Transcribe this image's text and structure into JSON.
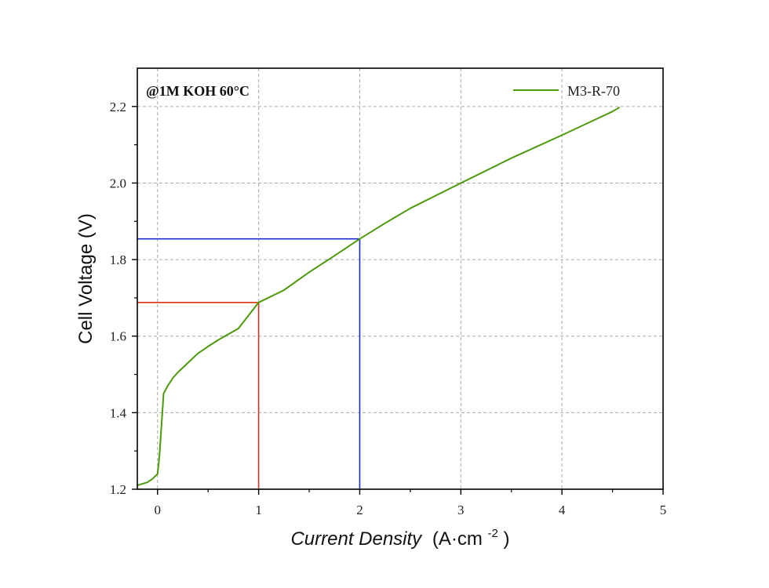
{
  "chart_data": {
    "type": "line",
    "annotation": "@1M KOH 60°C",
    "xlabel": {
      "italic": "Current Density",
      "unit_prefix": "(A·cm",
      "unit_exp": "-2",
      "unit_suffix": ")"
    },
    "ylabel": "Cell Voltage (V)",
    "xlim": [
      -0.2,
      5
    ],
    "ylim": [
      1.2,
      2.3
    ],
    "xticks": [
      0,
      1,
      2,
      3,
      4,
      5
    ],
    "xtick_labels": [
      "0",
      "1",
      "2",
      "3",
      "4",
      "5"
    ],
    "yticks": [
      1.2,
      1.4,
      1.6,
      1.8,
      2.0,
      2.2
    ],
    "ytick_labels": [
      "1.2",
      "1.4",
      "1.6",
      "1.8",
      "2.0",
      "2.2"
    ],
    "grid": true,
    "legend_position": "top-right",
    "series": [
      {
        "name": "M3-R-70",
        "color": "#4a9a0a",
        "x": [
          -0.2,
          -0.1,
          -0.05,
          0.0,
          0.02,
          0.04,
          0.06,
          0.1,
          0.15,
          0.2,
          0.3,
          0.4,
          0.5,
          0.6,
          0.8,
          1.0,
          1.25,
          1.5,
          1.75,
          2.0,
          2.25,
          2.5,
          3.0,
          3.5,
          4.0,
          4.5,
          4.57
        ],
        "y": [
          1.21,
          1.218,
          1.227,
          1.24,
          1.29,
          1.37,
          1.45,
          1.47,
          1.49,
          1.505,
          1.53,
          1.555,
          1.573,
          1.59,
          1.62,
          1.688,
          1.72,
          1.767,
          1.81,
          1.854,
          1.895,
          1.934,
          2.0,
          2.065,
          2.125,
          2.187,
          2.198
        ]
      }
    ],
    "guides": [
      {
        "x": 1.0,
        "y": 1.688,
        "color": "#e03020"
      },
      {
        "x": 2.0,
        "y": 1.854,
        "color": "#1a2ad0"
      }
    ]
  }
}
